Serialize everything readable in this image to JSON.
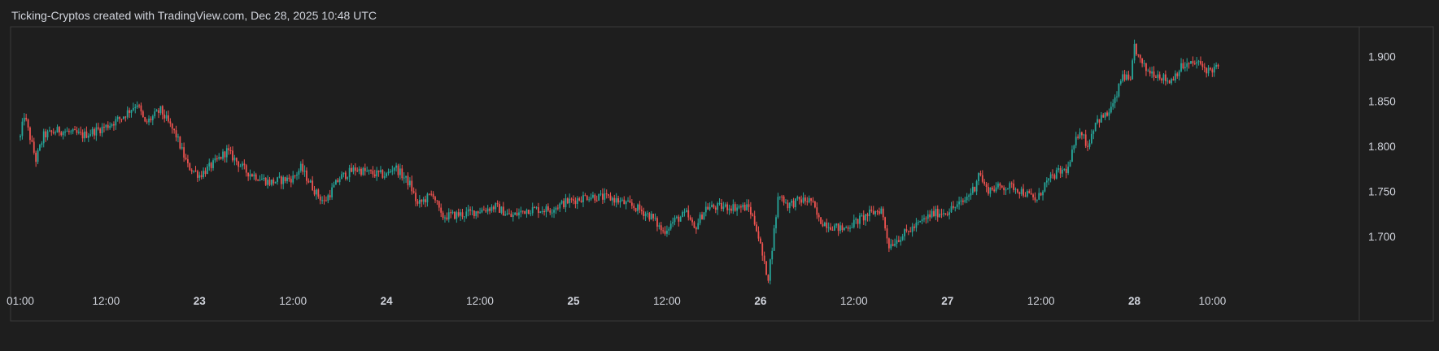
{
  "header": {
    "caption": "Ticking-Cryptos created with TradingView.com, Dec 28, 2025 10:48 UTC"
  },
  "colors": {
    "background": "#1e1e1e",
    "up": "#26a69a",
    "down": "#ef5350",
    "text": "#d1d4dc",
    "frame": "#3a3a3a"
  },
  "chart_data": {
    "type": "candlestick",
    "title": "",
    "xlabel": "",
    "ylabel": "",
    "ylim": [
      1.645,
      1.93
    ],
    "y_ticks": [
      "1.900",
      "1.850",
      "1.800",
      "1.750",
      "1.700"
    ],
    "x_range_hours": [
      "Dec 22 01:00",
      "Dec 28 10:48"
    ],
    "x_ticks": [
      {
        "label": "01:00",
        "time": "Dec 22 01:00",
        "bold": false
      },
      {
        "label": "12:00",
        "time": "Dec 22 12:00",
        "bold": false
      },
      {
        "label": "23",
        "time": "Dec 23 00:00",
        "bold": true
      },
      {
        "label": "12:00",
        "time": "Dec 23 12:00",
        "bold": false
      },
      {
        "label": "24",
        "time": "Dec 24 00:00",
        "bold": true
      },
      {
        "label": "12:00",
        "time": "Dec 24 12:00",
        "bold": false
      },
      {
        "label": "25",
        "time": "Dec 25 00:00",
        "bold": true
      },
      {
        "label": "12:00",
        "time": "Dec 25 12:00",
        "bold": false
      },
      {
        "label": "26",
        "time": "Dec 26 00:00",
        "bold": true
      },
      {
        "label": "12:00",
        "time": "Dec 26 12:00",
        "bold": false
      },
      {
        "label": "27",
        "time": "Dec 27 00:00",
        "bold": true
      },
      {
        "label": "12:00",
        "time": "Dec 27 12:00",
        "bold": false
      },
      {
        "label": "28",
        "time": "Dec 28 00:00",
        "bold": true
      },
      {
        "label": "10:00",
        "time": "Dec 28 10:00",
        "bold": false
      }
    ],
    "close_path": [
      [
        "Dec 22 01:00",
        1.81
      ],
      [
        "Dec 22 01:30",
        1.835
      ],
      [
        "Dec 22 02:00",
        1.818
      ],
      [
        "Dec 22 03:00",
        1.785
      ],
      [
        "Dec 22 04:00",
        1.812
      ],
      [
        "Dec 22 06:00",
        1.818
      ],
      [
        "Dec 22 09:00",
        1.812
      ],
      [
        "Dec 22 12:00",
        1.822
      ],
      [
        "Dec 22 14:00",
        1.832
      ],
      [
        "Dec 22 16:00",
        1.848
      ],
      [
        "Dec 22 17:00",
        1.825
      ],
      [
        "Dec 22 19:00",
        1.84
      ],
      [
        "Dec 22 21:00",
        1.812
      ],
      [
        "Dec 22 22:30",
        1.778
      ],
      [
        "Dec 23 00:00",
        1.768
      ],
      [
        "Dec 23 02:00",
        1.782
      ],
      [
        "Dec 23 03:30",
        1.795
      ],
      [
        "Dec 23 06:00",
        1.772
      ],
      [
        "Dec 23 09:00",
        1.76
      ],
      [
        "Dec 23 12:00",
        1.765
      ],
      [
        "Dec 23 13:00",
        1.776
      ],
      [
        "Dec 23 15:00",
        1.748
      ],
      [
        "Dec 23 16:00",
        1.738
      ],
      [
        "Dec 23 18:00",
        1.765
      ],
      [
        "Dec 23 20:00",
        1.775
      ],
      [
        "Dec 23 22:00",
        1.77
      ],
      [
        "Dec 24 00:00",
        1.768
      ],
      [
        "Dec 24 01:00",
        1.778
      ],
      [
        "Dec 24 03:00",
        1.758
      ],
      [
        "Dec 24 04:00",
        1.735
      ],
      [
        "Dec 24 06:00",
        1.748
      ],
      [
        "Dec 24 07:00",
        1.722
      ],
      [
        "Dec 24 10:00",
        1.725
      ],
      [
        "Dec 24 14:00",
        1.733
      ],
      [
        "Dec 24 16:00",
        1.722
      ],
      [
        "Dec 24 18:00",
        1.73
      ],
      [
        "Dec 24 21:00",
        1.73
      ],
      [
        "Dec 24 23:00",
        1.738
      ],
      [
        "Dec 25 02:00",
        1.745
      ],
      [
        "Dec 25 05:00",
        1.742
      ],
      [
        "Dec 25 08:00",
        1.732
      ],
      [
        "Dec 25 10:00",
        1.722
      ],
      [
        "Dec 25 11:30",
        1.705
      ],
      [
        "Dec 25 13:00",
        1.718
      ],
      [
        "Dec 25 14:30",
        1.725
      ],
      [
        "Dec 25 15:30",
        1.708
      ],
      [
        "Dec 25 17:00",
        1.732
      ],
      [
        "Dec 25 20:00",
        1.733
      ],
      [
        "Dec 25 22:30",
        1.732
      ],
      [
        "Dec 25 23:30",
        1.71
      ],
      [
        "Dec 26 00:30",
        1.668
      ],
      [
        "Dec 26 01:00",
        1.655
      ],
      [
        "Dec 26 01:40",
        1.7
      ],
      [
        "Dec 26 02:20",
        1.748
      ],
      [
        "Dec 26 03:30",
        1.735
      ],
      [
        "Dec 26 05:00",
        1.74
      ],
      [
        "Dec 26 06:30",
        1.74
      ],
      [
        "Dec 26 07:30",
        1.718
      ],
      [
        "Dec 26 09:00",
        1.712
      ],
      [
        "Dec 26 10:30",
        1.708
      ],
      [
        "Dec 26 12:00",
        1.715
      ],
      [
        "Dec 26 14:00",
        1.725
      ],
      [
        "Dec 26 15:30",
        1.73
      ],
      [
        "Dec 26 16:30",
        1.69
      ],
      [
        "Dec 26 18:00",
        1.7
      ],
      [
        "Dec 26 20:00",
        1.712
      ],
      [
        "Dec 26 22:00",
        1.725
      ],
      [
        "Dec 27 00:00",
        1.728
      ],
      [
        "Dec 27 02:00",
        1.738
      ],
      [
        "Dec 27 03:30",
        1.755
      ],
      [
        "Dec 27 04:00",
        1.772
      ],
      [
        "Dec 27 05:00",
        1.752
      ],
      [
        "Dec 27 07:00",
        1.755
      ],
      [
        "Dec 27 08:30",
        1.755
      ],
      [
        "Dec 27 10:00",
        1.748
      ],
      [
        "Dec 27 11:30",
        1.74
      ],
      [
        "Dec 27 12:30",
        1.758
      ],
      [
        "Dec 27 14:00",
        1.77
      ],
      [
        "Dec 27 15:30",
        1.775
      ],
      [
        "Dec 27 16:00",
        1.792
      ],
      [
        "Dec 27 17:00",
        1.82
      ],
      [
        "Dec 27 18:00",
        1.8
      ],
      [
        "Dec 27 19:00",
        1.828
      ],
      [
        "Dec 27 20:30",
        1.835
      ],
      [
        "Dec 27 21:30",
        1.85
      ],
      [
        "Dec 27 22:30",
        1.88
      ],
      [
        "Dec 27 23:30",
        1.87
      ],
      [
        "Dec 28 00:00",
        1.912
      ],
      [
        "Dec 28 00:40",
        1.895
      ],
      [
        "Dec 28 01:30",
        1.885
      ],
      [
        "Dec 28 03:00",
        1.88
      ],
      [
        "Dec 28 04:30",
        1.872
      ],
      [
        "Dec 28 06:00",
        1.888
      ],
      [
        "Dec 28 08:00",
        1.893
      ],
      [
        "Dec 28 09:30",
        1.884
      ],
      [
        "Dec 28 10:48",
        1.888
      ]
    ]
  }
}
